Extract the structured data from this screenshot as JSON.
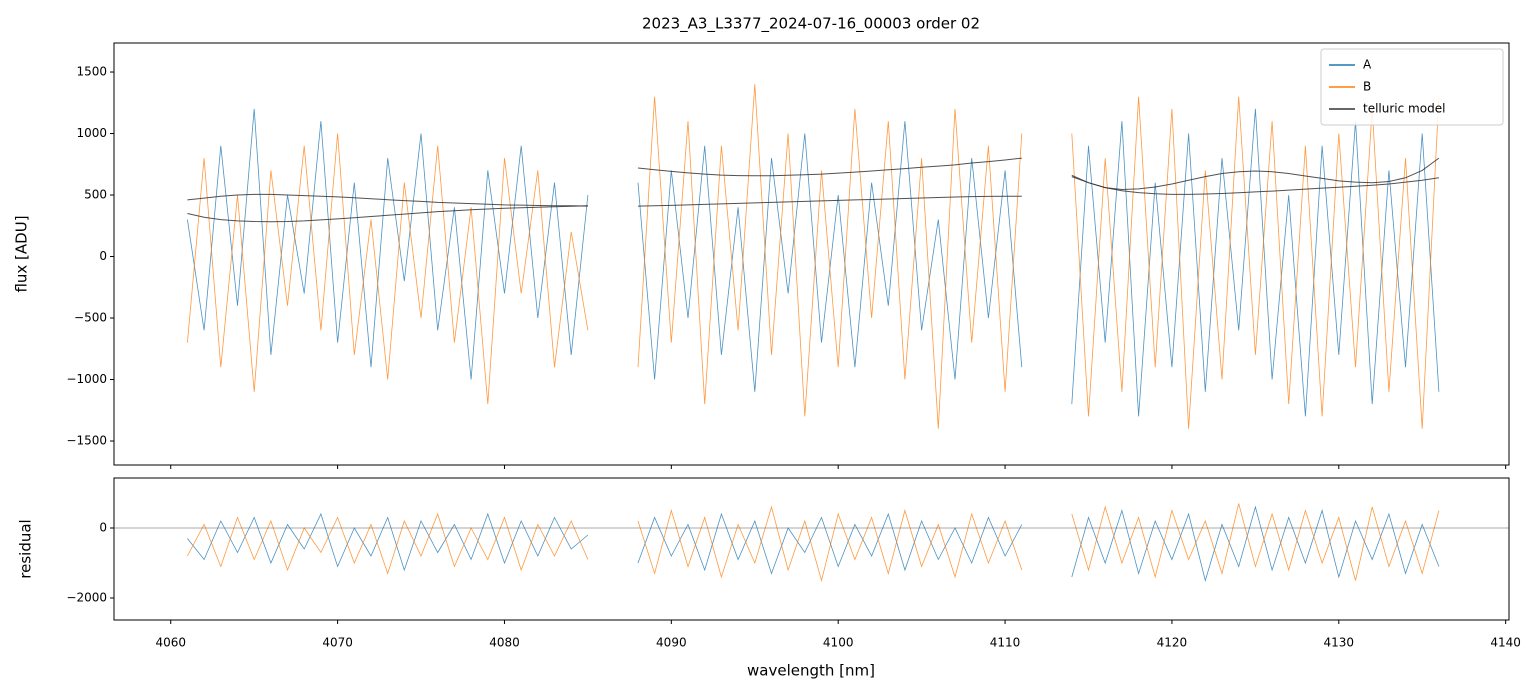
{
  "chart_data": [
    {
      "type": "line",
      "title": "2023_A3_L3377_2024-07-16_00003  order 02",
      "y_label": "flux [ADU]",
      "x": [
        4061,
        4062,
        4063,
        4064,
        4065,
        4066,
        4067,
        4068,
        4069,
        4070,
        4071,
        4072,
        4073,
        4074,
        4075,
        4076,
        4077,
        4078,
        4079,
        4080,
        4081,
        4082,
        4083,
        4084,
        4085,
        4087,
        4088,
        4089,
        4090,
        4091,
        4092,
        4093,
        4094,
        4095,
        4096,
        4097,
        4098,
        4099,
        4100,
        4101,
        4102,
        4103,
        4104,
        4105,
        4106,
        4107,
        4108,
        4109,
        4110,
        4111,
        4113,
        4114,
        4115,
        4116,
        4117,
        4118,
        4119,
        4120,
        4121,
        4122,
        4123,
        4124,
        4125,
        4126,
        4127,
        4128,
        4129,
        4130,
        4131,
        4132,
        4133,
        4134,
        4135,
        4136
      ],
      "xlim": [
        4056.6,
        4140.2
      ],
      "ylim": [
        -1695,
        1736
      ],
      "yticks": [
        {
          "value": -1500,
          "label": "−1500"
        },
        {
          "value": -1000,
          "label": "−1000"
        },
        {
          "value": -500,
          "label": "−500"
        },
        0,
        500,
        1000,
        1500
      ],
      "legend": "upper right",
      "series": [
        {
          "name": "A",
          "color": "#1f77b4",
          "values": [
            300,
            -600,
            900,
            -400,
            1200,
            -800,
            500,
            -300,
            1100,
            -700,
            600,
            -900,
            800,
            -200,
            1000,
            -600,
            400,
            -1000,
            700,
            -300,
            900,
            -500,
            600,
            -800,
            500,
            null,
            600,
            -1000,
            700,
            -500,
            900,
            -800,
            400,
            -1100,
            800,
            -300,
            1000,
            -700,
            500,
            -900,
            600,
            -400,
            1100,
            -600,
            300,
            -1000,
            800,
            -500,
            700,
            -900,
            null,
            -1200,
            900,
            -700,
            1100,
            -1300,
            600,
            -900,
            1000,
            -1100,
            800,
            -600,
            1200,
            -1000,
            500,
            -1300,
            900,
            -800,
            1100,
            -1200,
            700,
            -900,
            1000,
            -1100
          ]
        },
        {
          "name": "B",
          "color": "#ff7f0e",
          "values": [
            -700,
            800,
            -900,
            500,
            -1100,
            700,
            -400,
            900,
            -600,
            1000,
            -800,
            300,
            -1000,
            600,
            -500,
            900,
            -700,
            400,
            -1200,
            800,
            -300,
            700,
            -900,
            200,
            -600,
            null,
            -900,
            1300,
            -700,
            1100,
            -1200,
            900,
            -600,
            1400,
            -800,
            1000,
            -1300,
            700,
            -900,
            1200,
            -500,
            1100,
            -1000,
            800,
            -1400,
            1200,
            -700,
            900,
            -1100,
            1000,
            null,
            1000,
            -1300,
            800,
            -1100,
            1300,
            -900,
            1200,
            -1400,
            700,
            -1000,
            1300,
            -800,
            1100,
            -1200,
            900,
            -1300,
            1000,
            -900,
            1200,
            -1100,
            800,
            -1400,
            1300
          ]
        },
        {
          "name": "telluric model",
          "color": "#333333",
          "values": [
            460,
            475,
            490,
            500,
            505,
            505,
            500,
            495,
            490,
            485,
            478,
            470,
            462,
            455,
            448,
            440,
            435,
            430,
            425,
            420,
            418,
            415,
            413,
            412,
            410,
            null,
            410,
            413,
            416,
            420,
            424,
            428,
            432,
            436,
            440,
            444,
            448,
            452,
            456,
            460,
            464,
            468,
            472,
            476,
            480,
            484,
            487,
            489,
            490,
            490,
            null,
            650,
            600,
            560,
            535,
            520,
            510,
            505,
            505,
            508,
            512,
            518,
            525,
            532,
            540,
            548,
            556,
            564,
            572,
            580,
            590,
            605,
            620,
            640
          ]
        },
        {
          "color": "#333333",
          "values": [
            350,
            320,
            300,
            290,
            285,
            283,
            285,
            290,
            298,
            306,
            315,
            325,
            335,
            345,
            355,
            365,
            372,
            380,
            386,
            392,
            397,
            401,
            405,
            408,
            412,
            null,
            720,
            705,
            692,
            680,
            670,
            662,
            658,
            656,
            657,
            660,
            665,
            670,
            678,
            686,
            695,
            705,
            715,
            725,
            735,
            745,
            760,
            772,
            785,
            800,
            null,
            660,
            600,
            560,
            545,
            550,
            565,
            590,
            620,
            650,
            675,
            690,
            695,
            690,
            675,
            655,
            635,
            615,
            605,
            600,
            610,
            640,
            700,
            800
          ]
        }
      ]
    },
    {
      "type": "line",
      "x_label": "wavelength [nm]",
      "y_label": "residual",
      "x": [
        4061,
        4062,
        4063,
        4064,
        4065,
        4066,
        4067,
        4068,
        4069,
        4070,
        4071,
        4072,
        4073,
        4074,
        4075,
        4076,
        4077,
        4078,
        4079,
        4080,
        4081,
        4082,
        4083,
        4084,
        4085,
        4087,
        4088,
        4089,
        4090,
        4091,
        4092,
        4093,
        4094,
        4095,
        4096,
        4097,
        4098,
        4099,
        4100,
        4101,
        4102,
        4103,
        4104,
        4105,
        4106,
        4107,
        4108,
        4109,
        4110,
        4111,
        4113,
        4114,
        4115,
        4116,
        4117,
        4118,
        4119,
        4120,
        4121,
        4122,
        4123,
        4124,
        4125,
        4126,
        4127,
        4128,
        4129,
        4130,
        4131,
        4132,
        4133,
        4134,
        4135,
        4136
      ],
      "xlim": [
        4056.6,
        4140.2
      ],
      "xticks": [
        4060,
        4070,
        4080,
        4090,
        4100,
        4110,
        4120,
        4130,
        4140
      ],
      "ylim": [
        -2629,
        1429
      ],
      "yticks": [
        {
          "value": -2000,
          "label": "−2000"
        },
        0
      ],
      "series": [
        {
          "color": "#1f77b4",
          "values": [
            -300,
            -900,
            200,
            -700,
            300,
            -1000,
            100,
            -600,
            400,
            -1100,
            0,
            -800,
            300,
            -1200,
            200,
            -700,
            100,
            -900,
            400,
            -1000,
            200,
            -800,
            300,
            -600,
            -200,
            null,
            -1000,
            300,
            -800,
            100,
            -1200,
            400,
            -900,
            200,
            -1300,
            0,
            -700,
            300,
            -1100,
            100,
            -800,
            400,
            -1200,
            200,
            -900,
            0,
            -1000,
            300,
            -800,
            100,
            null,
            -1400,
            300,
            -1000,
            500,
            -1300,
            200,
            -900,
            400,
            -1500,
            100,
            -1100,
            600,
            -1200,
            300,
            -1000,
            500,
            -1400,
            200,
            -900,
            400,
            -1300,
            100,
            -1100
          ]
        },
        {
          "color": "#ff7f0e",
          "values": [
            -800,
            100,
            -1100,
            300,
            -900,
            200,
            -1200,
            0,
            -700,
            300,
            -1000,
            100,
            -1300,
            200,
            -800,
            400,
            -1100,
            0,
            -900,
            300,
            -1200,
            100,
            -800,
            200,
            -900,
            null,
            200,
            -1300,
            500,
            -1100,
            300,
            -1400,
            100,
            -1000,
            600,
            -1200,
            200,
            -1500,
            400,
            -900,
            300,
            -1300,
            500,
            -1100,
            100,
            -1400,
            400,
            -1000,
            200,
            -1200,
            null,
            400,
            -1200,
            600,
            -1000,
            300,
            -1400,
            500,
            -900,
            200,
            -1300,
            700,
            -1100,
            400,
            -1200,
            500,
            -1000,
            300,
            -1500,
            600,
            -1100,
            200,
            -1300,
            500
          ]
        }
      ]
    }
  ]
}
